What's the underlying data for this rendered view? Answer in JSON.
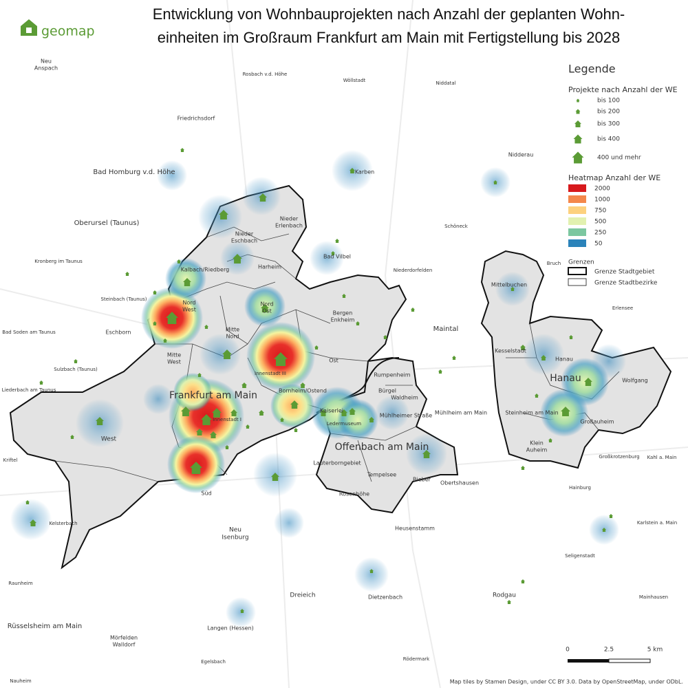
{
  "logo": "geomap",
  "title": [
    "Entwicklung von Wohnbauprojekten nach Anzahl der geplanten Wohn-",
    "einheiten im Großraum Frankfurt am Main mit Fertigstellung bis 2028"
  ],
  "legend": {
    "title": "Legende",
    "projects": {
      "title": "Projekte nach Anzahl der WE",
      "items": [
        "bis 100",
        "bis 200",
        "bis 300",
        "bis 400",
        "400 und mehr"
      ],
      "color": "#5b9b35"
    },
    "heatmap": {
      "title": "Heatmap Anzahl der WE",
      "items": [
        {
          "value": 2000,
          "color": "#d7191c"
        },
        {
          "value": 1000,
          "color": "#f4874b"
        },
        {
          "value": 750,
          "color": "#fdd17e"
        },
        {
          "value": 500,
          "color": "#e2f1b0"
        },
        {
          "value": 250,
          "color": "#7cc7a0"
        },
        {
          "value": 50,
          "color": "#2b83ba"
        }
      ]
    },
    "borders": {
      "title": "Grenzen",
      "items": [
        "Grenze Stadtgebiet",
        "Grenze Stadtbezirke"
      ]
    }
  },
  "scale": [
    "0",
    "2.5",
    "5 km"
  ],
  "places": [
    {
      "lines": [
        "Neu",
        "Anspach"
      ]
    },
    {
      "lines": [
        "Rosbach v.d. Höhe"
      ]
    },
    {
      "lines": [
        "Wöllstadt"
      ]
    },
    {
      "lines": [
        "Niddatal"
      ]
    },
    {
      "lines": [
        "Friedrichsdorf"
      ]
    },
    {
      "lines": [
        "Nidderau"
      ]
    },
    {
      "lines": [
        "Karben"
      ]
    },
    {
      "lines": [
        "Bad Homburg v.d. Höhe"
      ]
    },
    {
      "lines": [
        "Oberursel (Taunus)"
      ]
    },
    {
      "lines": [
        "Schöneck"
      ]
    },
    {
      "lines": [
        "Bad Vilbel"
      ]
    },
    {
      "lines": [
        "Niederdorfelden"
      ]
    },
    {
      "lines": [
        "Kronberg im Taunus"
      ]
    },
    {
      "lines": [
        "Bruch"
      ]
    },
    {
      "lines": [
        "Steinbach (Taunus)"
      ]
    },
    {
      "lines": [
        "Erlensee"
      ]
    },
    {
      "lines": [
        "Bad Soden am Taunus"
      ]
    },
    {
      "lines": [
        "Eschborn"
      ]
    },
    {
      "lines": [
        "Maintal"
      ]
    },
    {
      "lines": [
        "Sulzbach (Taunus)"
      ]
    },
    {
      "lines": [
        "Liederbach am Taunus"
      ]
    },
    {
      "lines": [
        "Mühlheim am Main"
      ]
    },
    {
      "lines": [
        "Kriftel"
      ]
    },
    {
      "lines": [
        "Großkrotzenburg"
      ]
    },
    {
      "lines": [
        "Kahl a. Main"
      ]
    },
    {
      "lines": [
        "Obertshausen"
      ]
    },
    {
      "lines": [
        "Hainburg"
      ]
    },
    {
      "lines": [
        "Kelsterbach"
      ]
    },
    {
      "lines": [
        "Karlstein a. Main"
      ]
    },
    {
      "lines": [
        "Neu",
        "Isenburg"
      ]
    },
    {
      "lines": [
        "Heusenstamm"
      ]
    },
    {
      "lines": [
        "Seligenstadt"
      ]
    },
    {
      "lines": [
        "Raunheim"
      ]
    },
    {
      "lines": [
        "Dreieich"
      ]
    },
    {
      "lines": [
        "Rodgau"
      ]
    },
    {
      "lines": [
        "Dietzenbach"
      ]
    },
    {
      "lines": [
        "Mainhausen"
      ]
    },
    {
      "lines": [
        "Rüsselsheim am Main"
      ]
    },
    {
      "lines": [
        "Langen (Hessen)"
      ]
    },
    {
      "lines": [
        "Mörfelden",
        "Walldorf"
      ]
    },
    {
      "lines": [
        "Egelsbach"
      ]
    },
    {
      "lines": [
        "Rödermark"
      ]
    },
    {
      "lines": [
        "Nauheim"
      ]
    },
    {
      "lines": [
        "Nieder",
        "Erlenbach"
      ]
    },
    {
      "lines": [
        "Nieder",
        "Eschbach"
      ]
    },
    {
      "lines": [
        "Harheim"
      ]
    },
    {
      "lines": [
        "Kalbach/Riedberg"
      ]
    },
    {
      "lines": [
        "Nord",
        "West"
      ]
    },
    {
      "lines": [
        "Nord",
        "Ost"
      ]
    },
    {
      "lines": [
        "Bergen",
        "Enkheim"
      ]
    },
    {
      "lines": [
        "Mitte",
        "Nord"
      ]
    },
    {
      "lines": [
        "Mitte",
        "West"
      ]
    },
    {
      "lines": [
        "Ost"
      ]
    },
    {
      "lines": [
        "Innenstadt III"
      ]
    },
    {
      "lines": [
        "Frankfurt am Main"
      ]
    },
    {
      "lines": [
        "Bornheim/Ostend"
      ]
    },
    {
      "lines": [
        "West"
      ]
    },
    {
      "lines": [
        "Süd"
      ]
    },
    {
      "lines": [
        "Innenstadt I"
      ]
    },
    {
      "lines": [
        "Rumpenheim"
      ]
    },
    {
      "lines": [
        "Bürgel"
      ]
    },
    {
      "lines": [
        "Waldheim"
      ]
    },
    {
      "lines": [
        "Kaiserlei"
      ]
    },
    {
      "lines": [
        "Mühlheimer Straße"
      ]
    },
    {
      "lines": [
        "Ledermuseum"
      ]
    },
    {
      "lines": [
        "Offenbach am Main"
      ]
    },
    {
      "lines": [
        "Lauterborngebiet"
      ]
    },
    {
      "lines": [
        "Tempelsee"
      ]
    },
    {
      "lines": [
        "Bieber"
      ]
    },
    {
      "lines": [
        "Rosenhöhe"
      ]
    },
    {
      "lines": [
        "Mittelbuchen"
      ]
    },
    {
      "lines": [
        "Kesselstadt"
      ]
    },
    {
      "lines": [
        "Hanau"
      ]
    },
    {
      "lines": [
        "Hanau"
      ]
    },
    {
      "lines": [
        "Wolfgang"
      ]
    },
    {
      "lines": [
        "Steinheim am Main"
      ]
    },
    {
      "lines": [
        "Großauheim"
      ]
    },
    {
      "lines": [
        "Klein",
        "Auheim"
      ]
    }
  ],
  "attribution": "Map tiles by Stamen Design, under CC BY 3.0. Data by OpenStreetMap, under ODbL."
}
